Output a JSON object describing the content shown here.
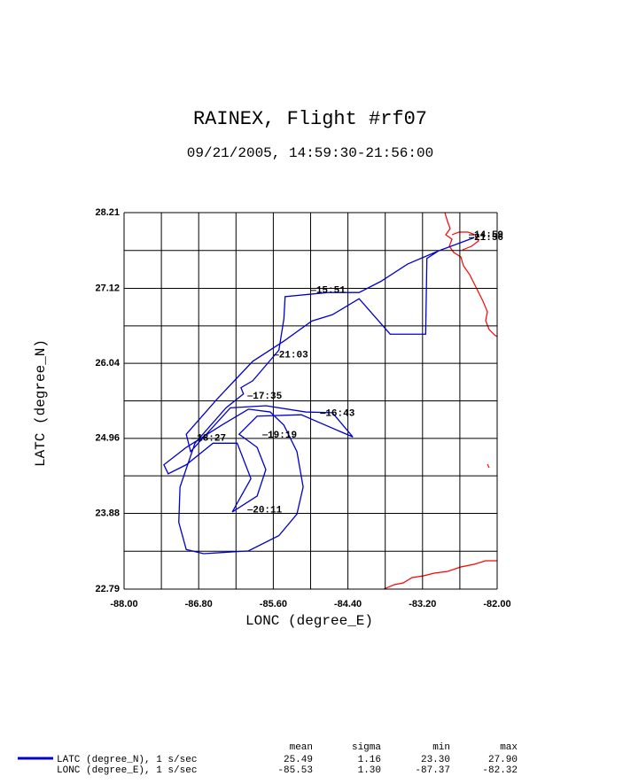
{
  "chart_data": {
    "type": "line",
    "title": "RAINEX, Flight #rf07",
    "subtitle": "09/21/2005, 14:59:30-21:56:00",
    "xlabel": "LONC (degree_E)",
    "ylabel": "LATC (degree_N)",
    "xlim": [
      -88,
      -82
    ],
    "ylim": [
      22.79,
      28.21
    ],
    "xticks": [
      {
        "value": -88,
        "label": "-88.00"
      },
      {
        "value": -86.8,
        "label": "-86.80"
      },
      {
        "value": -85.6,
        "label": "-85.60"
      },
      {
        "value": -84.4,
        "label": "-84.40"
      },
      {
        "value": -83.2,
        "label": "-83.20"
      },
      {
        "value": -82,
        "label": "-82.00"
      }
    ],
    "yticks": [
      22.79,
      23.88,
      24.96,
      26.04,
      27.12,
      28.21
    ],
    "xgrid_minor": [
      -87.4,
      -86.2,
      -85.0,
      -83.8,
      -82.6
    ],
    "ygrid_minor": [
      23.335,
      24.42,
      25.5,
      26.58,
      27.665
    ],
    "grid": true,
    "series": [
      {
        "name": "LATC (degree_N), 1 s/sec",
        "color": "#0000cc",
        "x": [
          -82.37,
          -82.94,
          -83.13,
          -83.15,
          -83.72,
          -84.22,
          -84.65,
          -84.98,
          -85.43,
          -85.93,
          -86.5,
          -87.0,
          -86.93,
          -86.29,
          -85.72,
          -85.08,
          -84.65,
          -84.32,
          -85.15,
          -85.86,
          -86.15,
          -85.86,
          -85.72,
          -85.86,
          -86.26,
          -85.96,
          -86.18,
          -86.57,
          -87.0,
          -87.29,
          -87.36,
          -87.0,
          -86.43,
          -86.0,
          -85.65,
          -85.43,
          -85.22,
          -85.12,
          -85.22,
          -85.51,
          -86.0,
          -86.72,
          -87.0,
          -87.12,
          -87.1,
          -86.86,
          -86.36,
          -86.08,
          -86.12,
          -85.93,
          -85.51,
          -85.43,
          -85.41,
          -84.72,
          -84.22,
          -83.87,
          -83.44,
          -82.94
        ],
        "values": [
          27.85,
          27.66,
          27.55,
          26.46,
          26.46,
          26.97,
          26.74,
          26.65,
          26.36,
          26.07,
          25.53,
          25.02,
          24.77,
          25.4,
          25.43,
          25.34,
          25.33,
          24.98,
          25.3,
          25.28,
          25.02,
          24.83,
          24.51,
          24.13,
          23.9,
          24.38,
          24.89,
          24.89,
          24.58,
          24.45,
          24.58,
          24.83,
          25.15,
          25.38,
          25.34,
          25.15,
          24.77,
          24.26,
          23.87,
          23.56,
          23.34,
          23.3,
          23.36,
          23.75,
          24.26,
          24.89,
          25.4,
          25.6,
          25.69,
          25.79,
          26.23,
          26.68,
          27.0,
          27.06,
          27.06,
          27.22,
          27.47,
          27.66
        ]
      }
    ],
    "annotations": [
      {
        "text": "14:59",
        "x": -82.37,
        "y": 27.89
      },
      {
        "text": "21:56",
        "x": -82.37,
        "y": 27.85
      },
      {
        "text": "15:51",
        "x": -84.91,
        "y": 27.09
      },
      {
        "text": "21:03",
        "x": -85.51,
        "y": 26.16
      },
      {
        "text": "17:35",
        "x": -85.93,
        "y": 25.57
      },
      {
        "text": "16:43",
        "x": -84.76,
        "y": 25.32
      },
      {
        "text": "18:27",
        "x": -86.83,
        "y": 24.96
      },
      {
        "text": "19:19",
        "x": -85.69,
        "y": 25.01
      },
      {
        "text": "20:11",
        "x": -85.93,
        "y": 23.93
      }
    ]
  },
  "stats": {
    "headers": [
      "mean",
      "sigma",
      "min",
      "max"
    ],
    "rows": [
      [
        "LATC (degree_N), 1 s/sec",
        "25.49",
        "1.16",
        "23.30",
        "27.90"
      ],
      [
        "LONC (degree_E), 1 s/sec",
        "-85.53",
        "1.30",
        "-87.37",
        "-82.32"
      ]
    ]
  }
}
